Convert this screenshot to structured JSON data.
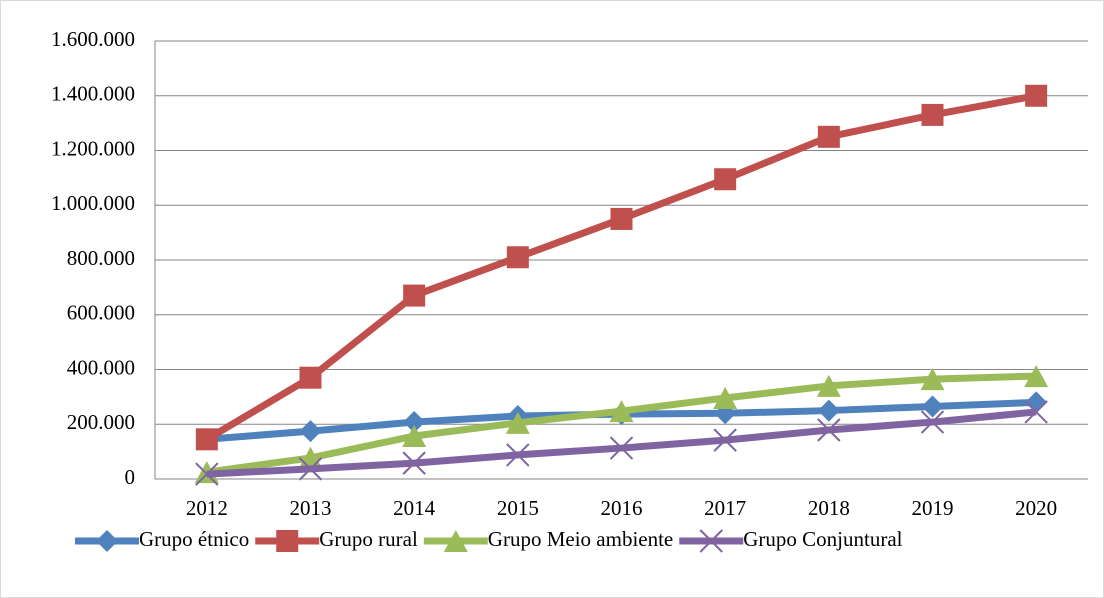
{
  "chart_data": {
    "type": "line",
    "categories": [
      "2012",
      "2013",
      "2014",
      "2015",
      "2016",
      "2017",
      "2018",
      "2019",
      "2020"
    ],
    "series": [
      {
        "name": "Grupo étnico",
        "color": "#4f81bd",
        "marker": "diamond",
        "values": [
          145000,
          175000,
          208000,
          230000,
          237000,
          240000,
          250000,
          265000,
          280000
        ]
      },
      {
        "name": "Grupo rural",
        "color": "#c0504d",
        "marker": "square",
        "values": [
          145000,
          370000,
          670000,
          810000,
          950000,
          1095000,
          1250000,
          1330000,
          1400000
        ]
      },
      {
        "name": "Grupo Meio ambiente",
        "color": "#9bbb59",
        "marker": "triangle",
        "values": [
          25000,
          77000,
          157000,
          205000,
          248000,
          296000,
          340000,
          365000,
          376000
        ]
      },
      {
        "name": "Grupo Conjuntural",
        "color": "#8064a2",
        "marker": "x",
        "values": [
          18000,
          37000,
          58000,
          88000,
          113000,
          142000,
          179000,
          208000,
          245000
        ]
      }
    ],
    "ylim": [
      0,
      1600000
    ],
    "yticks": [
      0,
      {
        "value": 200000,
        "label": "200.000"
      },
      {
        "value": 400000,
        "label": "400.000"
      },
      {
        "value": 600000,
        "label": "600.000"
      },
      {
        "value": 800000,
        "label": "800.000"
      },
      {
        "value": 1000000,
        "label": "1.000.000"
      },
      {
        "value": 1200000,
        "label": "1.200.000"
      },
      {
        "value": 1400000,
        "label": "1.400.000"
      },
      {
        "value": 1600000,
        "label": "1.600.000"
      }
    ],
    "grid": true,
    "legend": "bottom"
  }
}
